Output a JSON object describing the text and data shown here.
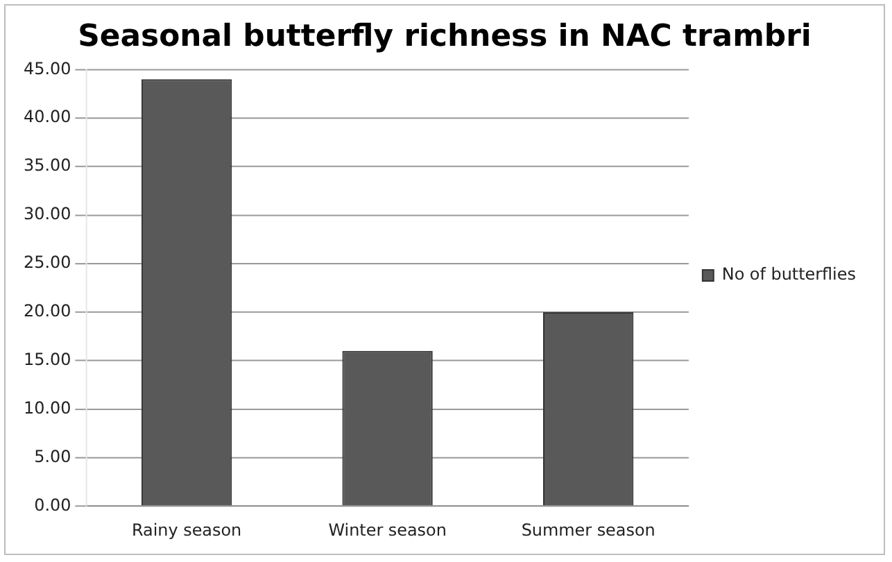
{
  "chart_data": {
    "type": "bar",
    "title": "Seasonal butterfly richness in NAC trambri",
    "categories": [
      "Rainy season",
      "Winter season",
      "Summer season"
    ],
    "series": [
      {
        "name": "No of butterflies",
        "color": "#595959",
        "values": [
          44,
          16,
          20
        ]
      }
    ],
    "ylim": [
      0,
      45
    ],
    "yticks": [
      {
        "value": 0,
        "label": "0.00"
      },
      {
        "value": 5,
        "label": "5.00"
      },
      {
        "value": 10,
        "label": "10.00"
      },
      {
        "value": 15,
        "label": "15.00"
      },
      {
        "value": 20,
        "label": "20.00"
      },
      {
        "value": 25,
        "label": "25.00"
      },
      {
        "value": 30,
        "label": "30.00"
      },
      {
        "value": 35,
        "label": "35.00"
      },
      {
        "value": 40,
        "label": "40.00"
      },
      {
        "value": 45,
        "label": "45.00"
      }
    ],
    "grid": "y",
    "legend": "right"
  }
}
